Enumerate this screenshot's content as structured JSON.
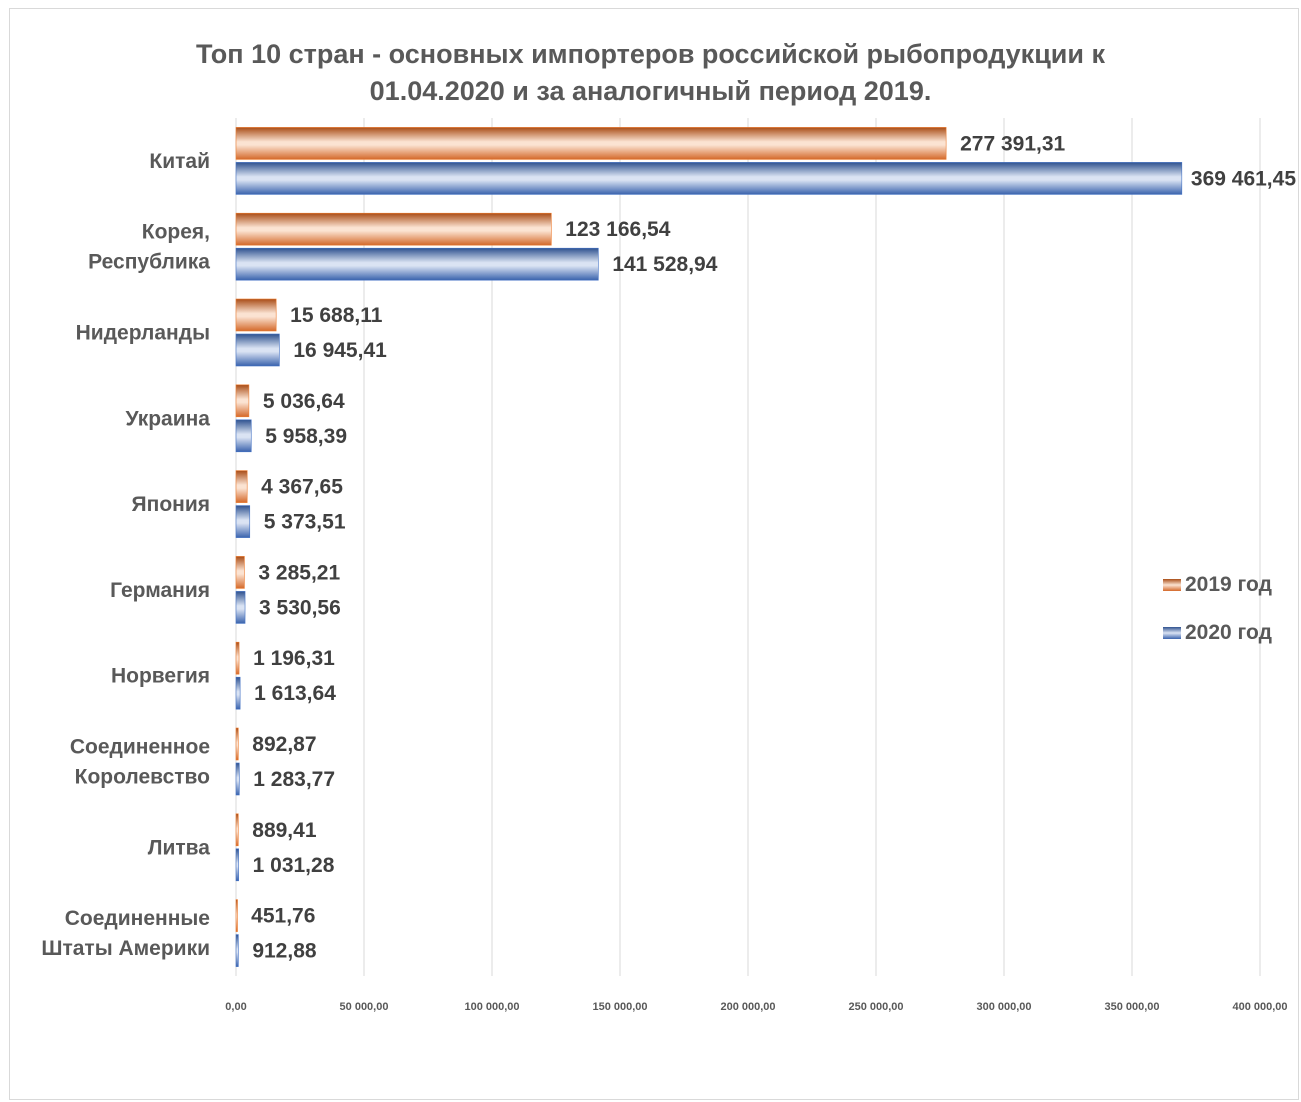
{
  "colors": {
    "series_2019": "#ed7d31",
    "series_2020": "#4472c4",
    "grid": "#d9d9d9",
    "text": "#595959"
  },
  "chart_data": {
    "type": "bar",
    "orientation": "horizontal",
    "title_lines": [
      "Топ 10 стран - основных импортеров российской рыбопродукции к",
      "01.04.2020 и за аналогичный период 2019."
    ],
    "categories": [
      [
        "Китай"
      ],
      [
        "Корея,",
        "Республика"
      ],
      [
        "Нидерланды"
      ],
      [
        "Украина"
      ],
      [
        "Япония"
      ],
      [
        "Германия"
      ],
      [
        "Норвегия"
      ],
      [
        "Соединенное",
        "Королевство"
      ],
      [
        "Литва"
      ],
      [
        "Соединенные",
        "Штаты Америки"
      ]
    ],
    "series": [
      {
        "name": "2019 год",
        "values": [
          277391.31,
          123166.54,
          15688.11,
          5036.64,
          4367.65,
          3285.21,
          1196.31,
          892.87,
          889.41,
          451.76
        ],
        "labels": [
          "277 391,31",
          "123 166,54",
          "15 688,11",
          "5 036,64",
          "4 367,65",
          "3 285,21",
          "1 196,31",
          "892,87",
          "889,41",
          "451,76"
        ]
      },
      {
        "name": "2020 год",
        "values": [
          369461.45,
          141528.94,
          16945.41,
          5958.39,
          5373.51,
          3530.56,
          1613.64,
          1283.77,
          1031.28,
          912.88
        ],
        "labels": [
          "369 461,45",
          "141 528,94",
          "16 945,41",
          "5 958,39",
          "5 373,51",
          "3 530,56",
          "1 613,64",
          "1 283,77",
          "1 031,28",
          "912,88"
        ]
      }
    ],
    "xlim": [
      0,
      400000
    ],
    "xticks": [
      0,
      50000,
      100000,
      150000,
      200000,
      250000,
      300000,
      350000,
      400000
    ],
    "xtick_labels": [
      "0,00",
      "50 000,00",
      "100 000,00",
      "150 000,00",
      "200 000,00",
      "250 000,00",
      "300 000,00",
      "350 000,00",
      "400 000,00"
    ],
    "grid": true,
    "legend_position": "right"
  }
}
